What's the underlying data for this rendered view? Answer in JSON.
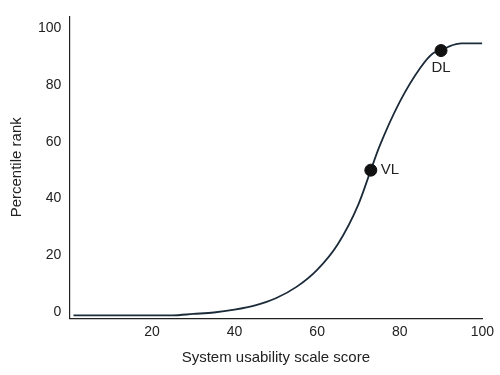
{
  "chart_data": {
    "type": "line",
    "x_label": "System usability scale score",
    "y_label": "Percentile rank",
    "x": [
      1,
      10,
      20,
      25,
      30,
      35,
      40,
      45,
      50,
      55,
      60,
      65,
      70,
      73,
      75,
      80,
      85,
      88,
      90,
      92,
      95,
      100
    ],
    "values": [
      -1,
      -1,
      -1,
      -1,
      -0.5,
      0,
      1,
      2.5,
      5,
      9,
      15,
      24,
      38,
      50,
      58,
      74,
      86,
      91,
      92,
      93.5,
      94.5,
      94.5
    ],
    "color": "#1c2b3a",
    "xlim": [
      0,
      100
    ],
    "xticks": [
      20,
      40,
      60,
      80,
      100
    ],
    "ylim": [
      -2,
      104
    ],
    "yticks": [
      0,
      20,
      40,
      60,
      80,
      100
    ],
    "grid": false,
    "annotations": [
      {
        "text": "VL",
        "x": 73,
        "y": 50
      },
      {
        "text": "DL",
        "x": 90,
        "y": 92
      }
    ]
  }
}
